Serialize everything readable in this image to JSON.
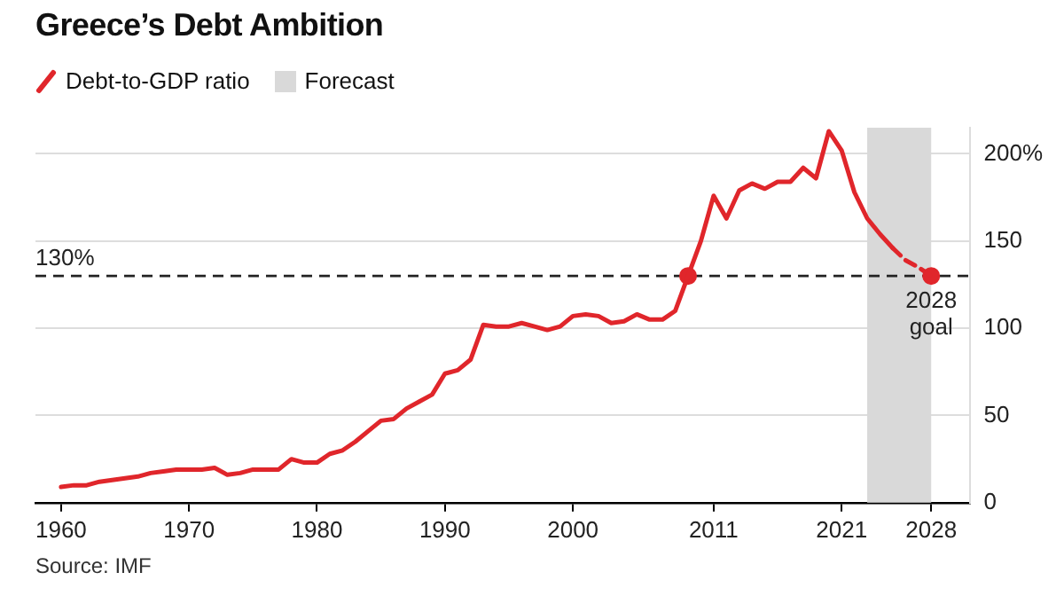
{
  "chart_data": {
    "type": "line",
    "title": "Greece’s Debt Ambition",
    "legend": "top left",
    "grid": "y",
    "xlim": [
      1958,
      2031
    ],
    "xticks": [
      1960,
      1970,
      1980,
      1990,
      2000,
      2011,
      2021,
      2028
    ],
    "ylim": [
      0,
      215
    ],
    "yticks": [
      0,
      50,
      100,
      150,
      {
        "value": 200,
        "label": "200%"
      }
    ],
    "ref_lines": [
      {
        "axis": "y",
        "value": 130,
        "label": "130%",
        "color": "#222222",
        "line_style": "dashed"
      }
    ],
    "bands": [
      {
        "axis": "x",
        "from": 2023,
        "to": 2028,
        "label": "Forecast",
        "color": "#d9d9d9"
      }
    ],
    "annotations": [
      {
        "text": "2028 goal",
        "x": 2028,
        "y": 130
      },
      "Source: IMF"
    ],
    "series": [
      {
        "name": "Debt-to-GDP ratio",
        "color": "#e0262b",
        "x": [
          1960,
          1961,
          1962,
          1963,
          1964,
          1965,
          1966,
          1967,
          1968,
          1969,
          1970,
          1971,
          1972,
          1973,
          1974,
          1975,
          1976,
          1977,
          1978,
          1979,
          1980,
          1981,
          1982,
          1983,
          1984,
          1985,
          1986,
          1987,
          1988,
          1989,
          1990,
          1991,
          1992,
          1993,
          1994,
          1995,
          1996,
          1997,
          1998,
          1999,
          2000,
          2001,
          2002,
          2003,
          2004,
          2005,
          2006,
          2007,
          2008,
          2009,
          2010,
          2011,
          2012,
          2013,
          2014,
          2015,
          2016,
          2017,
          2018,
          2019,
          2020,
          2021,
          2022,
          2023,
          2024,
          2025
        ],
        "values": [
          9,
          10,
          10,
          12,
          13,
          14,
          15,
          17,
          18,
          19,
          19,
          19,
          20,
          16,
          17,
          19,
          19,
          19,
          25,
          23,
          23,
          28,
          30,
          35,
          41,
          47,
          48,
          54,
          58,
          62,
          74,
          76,
          82,
          102,
          101,
          101,
          103,
          101,
          99,
          101,
          107,
          108,
          107,
          103,
          104,
          108,
          105,
          105,
          110,
          130,
          150,
          176,
          163,
          179,
          183,
          180,
          184,
          184,
          192,
          186,
          213,
          202,
          178,
          163,
          154,
          146
        ]
      },
      {
        "type": "line",
        "line_style": "dashed",
        "color": "#e0262b",
        "x": [
          2025,
          2026,
          2027,
          2028
        ],
        "values": [
          146,
          139,
          135,
          130
        ]
      },
      {
        "type": "scatter",
        "marker": "circle",
        "color": "#e0262b",
        "x": [
          2009,
          2028
        ],
        "values": [
          130,
          130
        ]
      }
    ]
  }
}
